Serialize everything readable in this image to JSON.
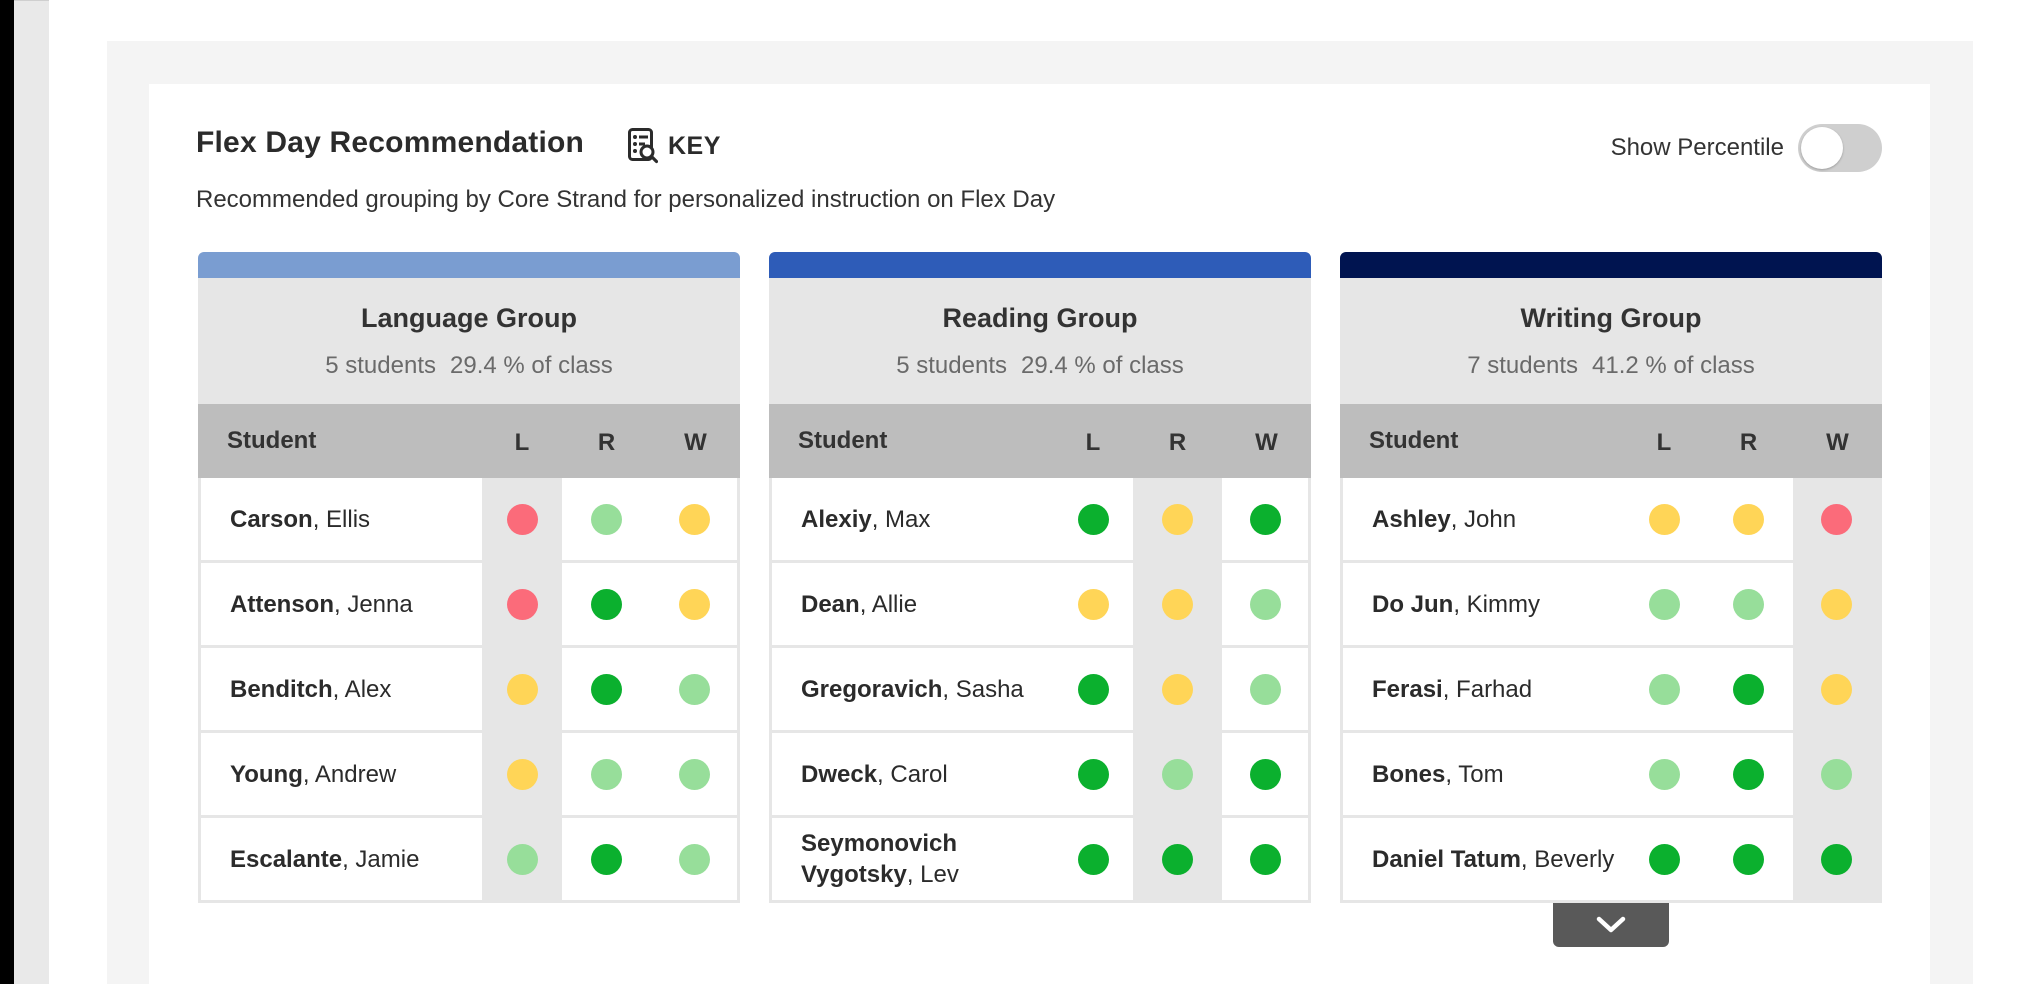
{
  "header": {
    "title": "Flex Day Recommendation",
    "key_label": "KEY",
    "subtitle": "Recommended grouping by Core Strand for personalized instruction on Flex Day",
    "percentile_label": "Show Percentile",
    "percentile_on": false
  },
  "colors": {
    "red": "#fb6b7a",
    "yellow": "#ffd557",
    "light_green": "#97de9a",
    "dark_green": "#0bb02e",
    "language_bar": "#7a9dd1",
    "reading_bar": "#2e5cb8",
    "writing_bar": "#001450"
  },
  "columns": {
    "student": "Student",
    "l": "L",
    "r": "R",
    "w": "W"
  },
  "groups": [
    {
      "name": "Language Group",
      "students_count": "5 students",
      "class_pct": "29.4 % of class",
      "highlight": "l",
      "rows": [
        {
          "last": "Carson",
          "first": ", Ellis",
          "l": "red",
          "r": "light_green",
          "w": "yellow"
        },
        {
          "last": "Attenson",
          "first": ", Jenna",
          "l": "red",
          "r": "dark_green",
          "w": "yellow"
        },
        {
          "last": "Benditch",
          "first": ", Alex",
          "l": "yellow",
          "r": "dark_green",
          "w": "light_green"
        },
        {
          "last": "Young",
          "first": ", Andrew",
          "l": "yellow",
          "r": "light_green",
          "w": "light_green"
        },
        {
          "last": "Escalante",
          "first": ", Jamie",
          "l": "light_green",
          "r": "dark_green",
          "w": "light_green"
        }
      ]
    },
    {
      "name": "Reading Group",
      "students_count": "5 students",
      "class_pct": "29.4 % of class",
      "highlight": "r",
      "rows": [
        {
          "last": "Alexiy",
          "first": ", Max",
          "l": "dark_green",
          "r": "yellow",
          "w": "dark_green"
        },
        {
          "last": "Dean",
          "first": ", Allie",
          "l": "yellow",
          "r": "yellow",
          "w": "light_green"
        },
        {
          "last": "Gregoravich",
          "first": ", Sasha",
          "l": "dark_green",
          "r": "yellow",
          "w": "light_green"
        },
        {
          "last": "Dweck",
          "first": ", Carol",
          "l": "dark_green",
          "r": "light_green",
          "w": "dark_green"
        },
        {
          "last": "Seymonovich Vygotsky",
          "first": ", Lev",
          "l": "dark_green",
          "r": "dark_green",
          "w": "dark_green"
        }
      ]
    },
    {
      "name": "Writing Group",
      "students_count": "7 students",
      "class_pct": "41.2 % of class",
      "highlight": "w",
      "rows": [
        {
          "last": "Ashley",
          "first": ", John",
          "l": "yellow",
          "r": "yellow",
          "w": "red"
        },
        {
          "last": "Do Jun",
          "first": ", Kimmy",
          "l": "light_green",
          "r": "light_green",
          "w": "yellow"
        },
        {
          "last": "Ferasi",
          "first": ", Farhad",
          "l": "light_green",
          "r": "dark_green",
          "w": "yellow"
        },
        {
          "last": "Bones",
          "first": ", Tom",
          "l": "light_green",
          "r": "dark_green",
          "w": "light_green"
        },
        {
          "last": "Daniel Tatum",
          "first": ", Beverly",
          "l": "dark_green",
          "r": "dark_green",
          "w": "dark_green"
        }
      ]
    }
  ]
}
